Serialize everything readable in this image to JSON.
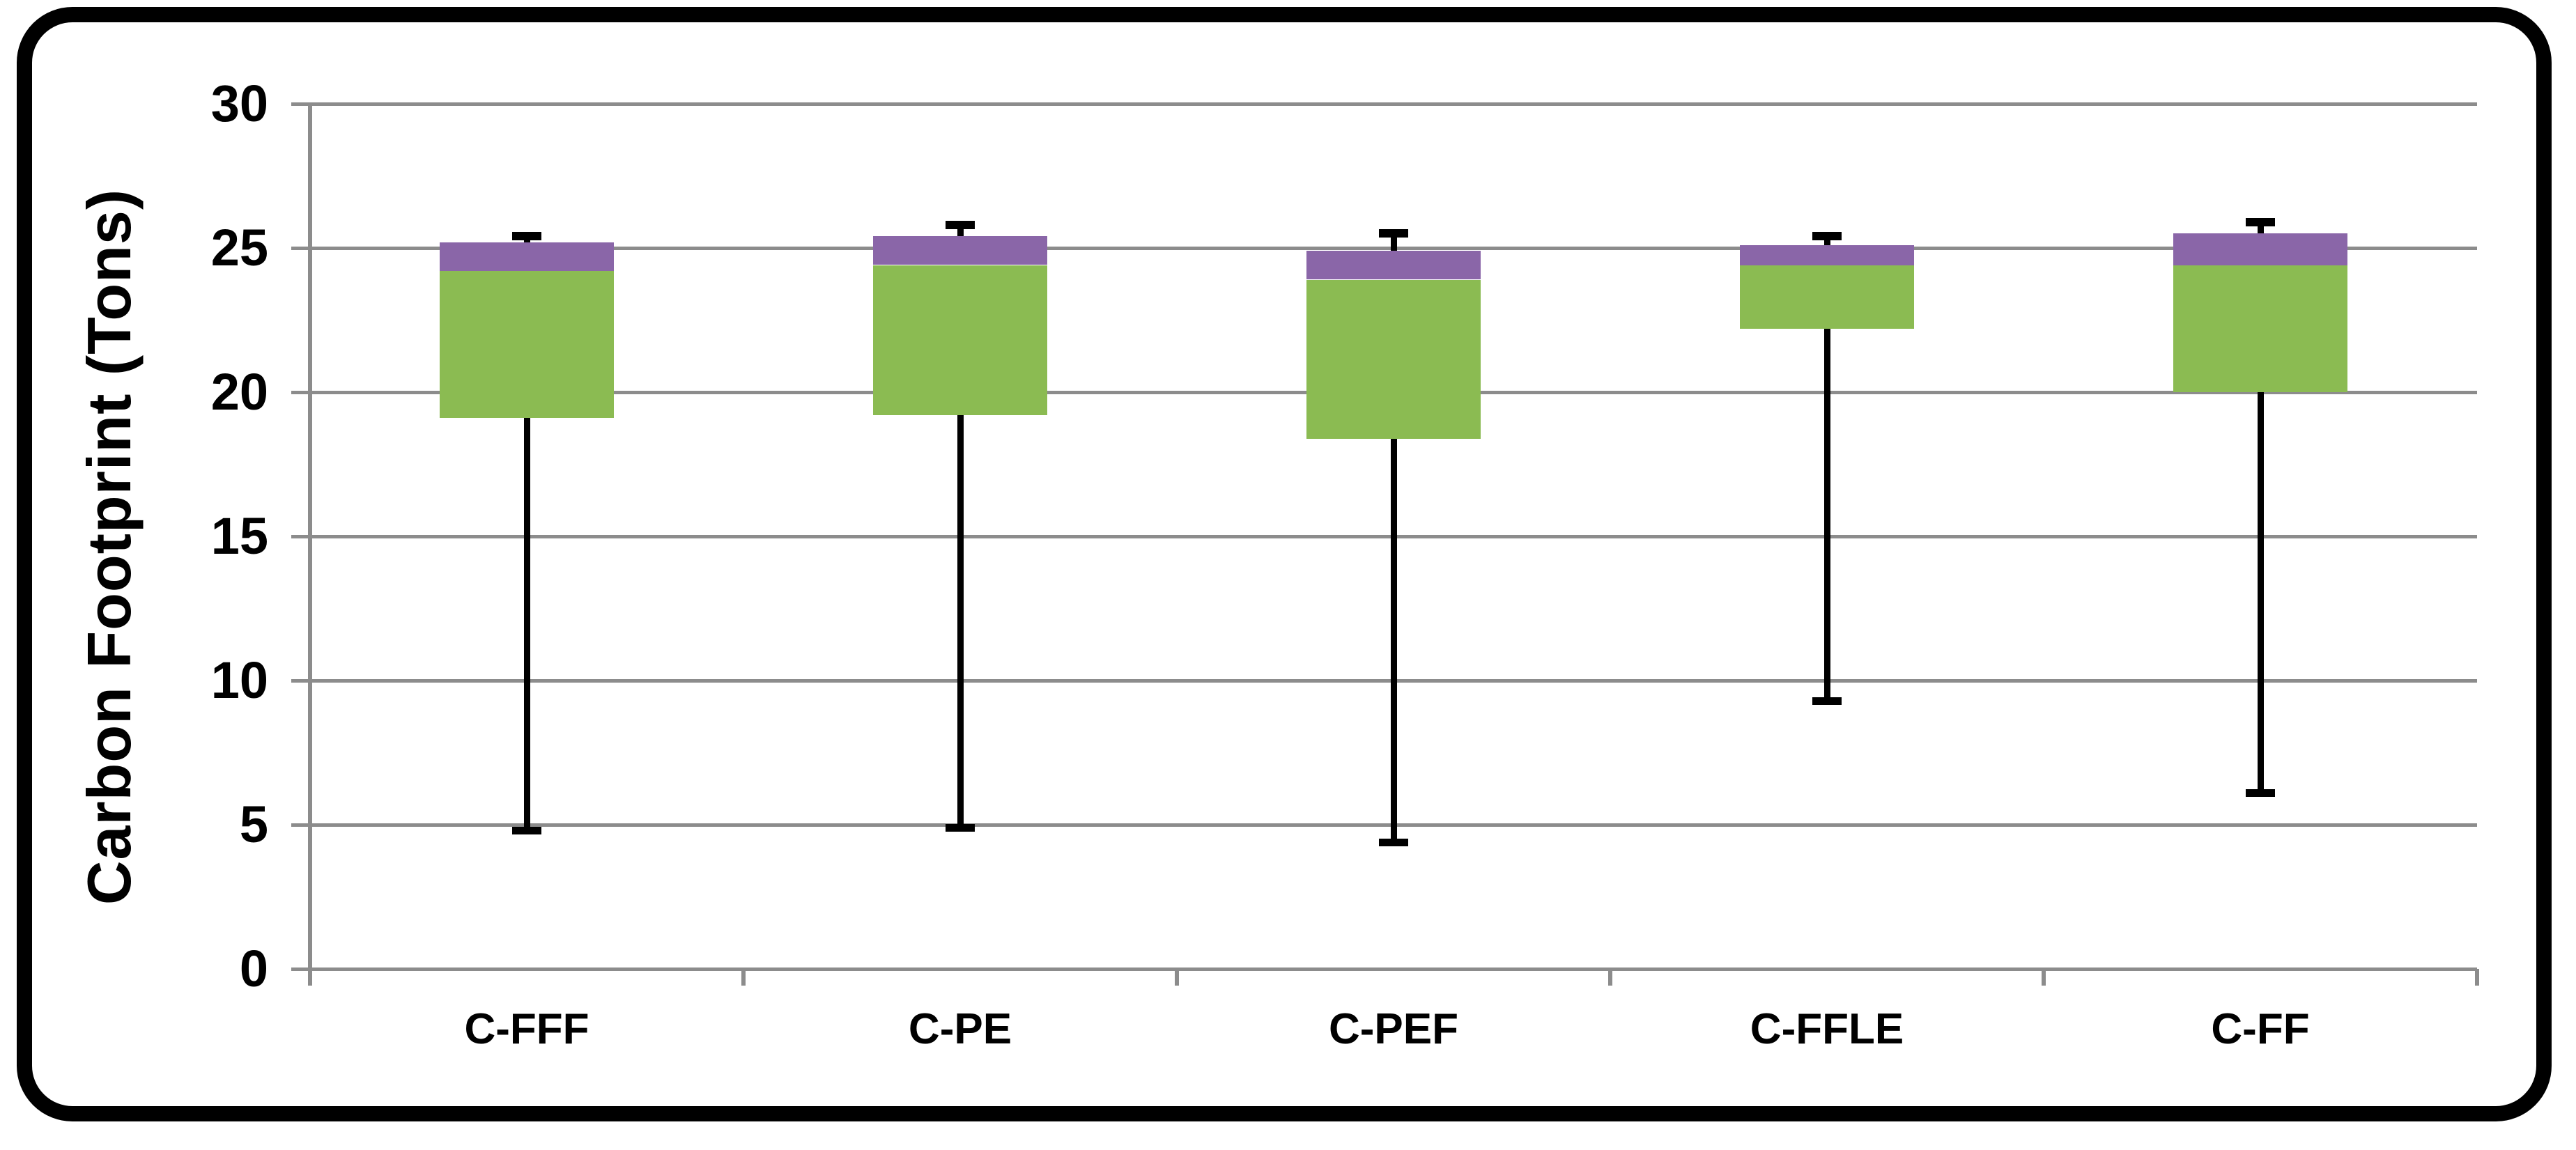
{
  "figure": {
    "background": "#FFFFFF",
    "frame_color": "#000000",
    "text_color": "#000000"
  },
  "chart_data": {
    "type": "boxplot",
    "title": "",
    "xlabel": "",
    "ylabel": "Carbon Footprint (Tons)",
    "ylim": [
      0,
      30
    ],
    "yticks": [
      0,
      5,
      10,
      15,
      20,
      25,
      30
    ],
    "grid": "horizontal-gray-lines",
    "legend": "none",
    "categories": [
      "C-FFF",
      "C-PE",
      "C-PEF",
      "C-FFLE",
      "C-FF"
    ],
    "series": [
      {
        "label": "C-FFF",
        "min": 4.8,
        "q1": 19.1,
        "median": 24.2,
        "q3": 25.2,
        "max": 25.4
      },
      {
        "label": "C-PE",
        "min": 4.9,
        "q1": 19.2,
        "median": 24.4,
        "q3": 25.4,
        "max": 25.8
      },
      {
        "label": "C-PEF",
        "min": 4.4,
        "q1": 18.4,
        "median": 23.9,
        "q3": 24.9,
        "max": 25.5
      },
      {
        "label": "C-FFLE",
        "min": 9.3,
        "q1": 22.2,
        "median": 24.4,
        "q3": 25.1,
        "max": 25.4
      },
      {
        "label": "C-FF",
        "min": 6.1,
        "q1": 20.0,
        "median": 24.4,
        "q3": 25.5,
        "max": 25.9
      }
    ],
    "colors": {
      "box_lower": "#8BBB52",
      "box_upper": "#8A66A8",
      "whisker": "#000000",
      "gridline": "#8C8C8C",
      "axis": "#8C8C8C"
    }
  }
}
